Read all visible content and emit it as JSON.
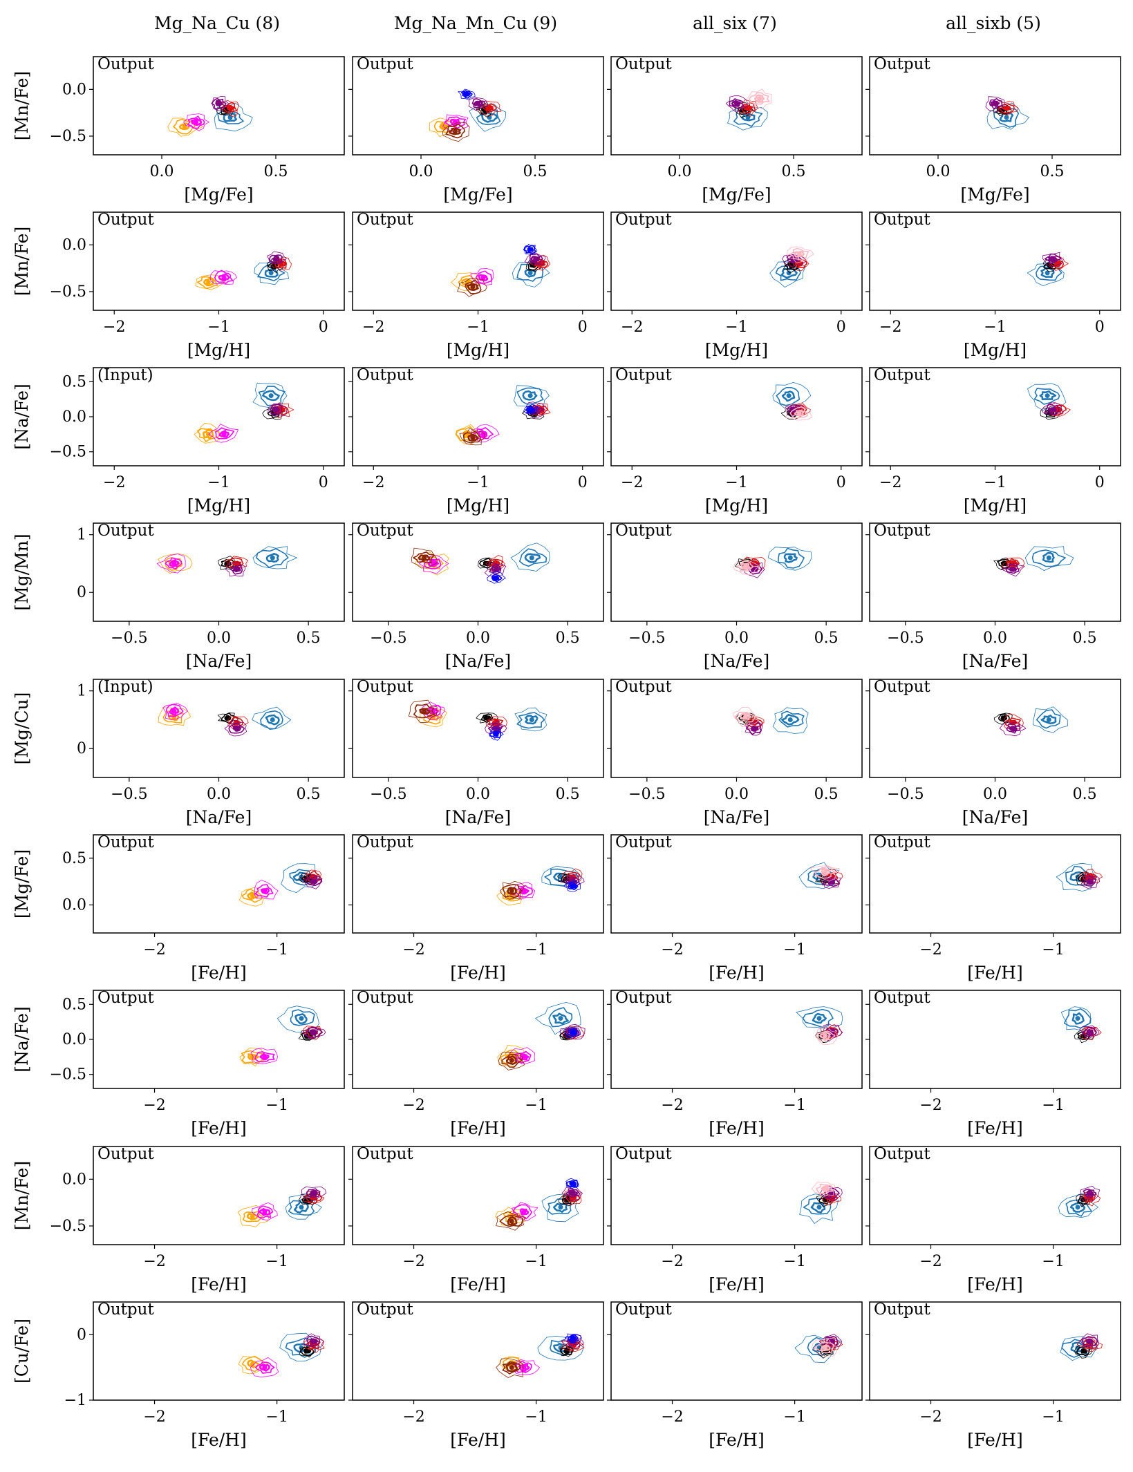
{
  "figure": {
    "column_titles": [
      "Mg_Na_Cu (8)",
      "Mg_Na_Mn_Cu (9)",
      "all_six (7)",
      "all_sixb (5)"
    ]
  },
  "chart_data": {
    "type": "contour",
    "grid": false,
    "rows": [
      {
        "xlabel": "[Mg/Fe]",
        "ylabel": "[Mn/Fe]",
        "xlim": [
          -0.3,
          0.8
        ],
        "ylim": [
          -0.7,
          0.35
        ],
        "xticks": [
          0.0,
          0.5
        ],
        "xtick_labels": [
          "0.0",
          "0.5"
        ],
        "yticks": [
          0.0,
          -0.5
        ],
        "ytick_labels": [
          "0.0",
          "−0.5"
        ],
        "tags": [
          "Output",
          "Output",
          "Output",
          "Output"
        ]
      },
      {
        "xlabel": "[Mg/H]",
        "ylabel": "[Mn/Fe]",
        "xlim": [
          -2.2,
          0.2
        ],
        "ylim": [
          -0.7,
          0.35
        ],
        "xticks": [
          -2,
          -1,
          0
        ],
        "xtick_labels": [
          "−2",
          "−1",
          "0"
        ],
        "yticks": [
          0.0,
          -0.5
        ],
        "ytick_labels": [
          "0.0",
          "−0.5"
        ],
        "tags": [
          "Output",
          "Output",
          "Output",
          "Output"
        ]
      },
      {
        "xlabel": "[Mg/H]",
        "ylabel": "[Na/Fe]",
        "xlim": [
          -2.2,
          0.2
        ],
        "ylim": [
          -0.7,
          0.7
        ],
        "xticks": [
          -2,
          -1,
          0
        ],
        "xtick_labels": [
          "−2",
          "−1",
          "0"
        ],
        "yticks": [
          0.5,
          0.0,
          -0.5
        ],
        "ytick_labels": [
          "0.5",
          "0.0",
          "−0.5"
        ],
        "tags": [
          "(Input)",
          "Output",
          "Output",
          "Output"
        ]
      },
      {
        "xlabel": "[Na/Fe]",
        "ylabel": "[Mg/Mn]",
        "xlim": [
          -0.7,
          0.7
        ],
        "ylim": [
          -0.5,
          1.2
        ],
        "xticks": [
          -0.5,
          0.0,
          0.5
        ],
        "xtick_labels": [
          "−0.5",
          "0.0",
          "0.5"
        ],
        "yticks": [
          1,
          0
        ],
        "ytick_labels": [
          "1",
          "0"
        ],
        "tags": [
          "Output",
          "Output",
          "Output",
          "Output"
        ]
      },
      {
        "xlabel": "[Na/Fe]",
        "ylabel": "[Mg/Cu]",
        "xlim": [
          -0.7,
          0.7
        ],
        "ylim": [
          -0.5,
          1.2
        ],
        "xticks": [
          -0.5,
          0.0,
          0.5
        ],
        "xtick_labels": [
          "−0.5",
          "0.0",
          "0.5"
        ],
        "yticks": [
          1,
          0
        ],
        "ytick_labels": [
          "1",
          "0"
        ],
        "tags": [
          "(Input)",
          "Output",
          "Output",
          "Output"
        ]
      },
      {
        "xlabel": "[Fe/H]",
        "ylabel": "[Mg/Fe]",
        "xlim": [
          -2.5,
          -0.45
        ],
        "ylim": [
          -0.3,
          0.75
        ],
        "xticks": [
          -2,
          -1
        ],
        "xtick_labels": [
          "−2",
          "−1"
        ],
        "yticks": [
          0.5,
          0.0
        ],
        "ytick_labels": [
          "0.5",
          "0.0"
        ],
        "tags": [
          "Output",
          "Output",
          "Output",
          "Output"
        ]
      },
      {
        "xlabel": "[Fe/H]",
        "ylabel": "[Na/Fe]",
        "xlim": [
          -2.5,
          -0.45
        ],
        "ylim": [
          -0.7,
          0.7
        ],
        "xticks": [
          -2,
          -1
        ],
        "xtick_labels": [
          "−2",
          "−1"
        ],
        "yticks": [
          0.5,
          0.0,
          -0.5
        ],
        "ytick_labels": [
          "0.5",
          "0.0",
          "−0.5"
        ],
        "tags": [
          "Output",
          "Output",
          "Output",
          "Output"
        ]
      },
      {
        "xlabel": "[Fe/H]",
        "ylabel": "[Mn/Fe]",
        "xlim": [
          -2.5,
          -0.45
        ],
        "ylim": [
          -0.7,
          0.35
        ],
        "xticks": [
          -2,
          -1
        ],
        "xtick_labels": [
          "−2",
          "−1"
        ],
        "yticks": [
          0.0,
          -0.5
        ],
        "ytick_labels": [
          "0.0",
          "−0.5"
        ],
        "tags": [
          "Output",
          "Output",
          "Output",
          "Output"
        ]
      },
      {
        "xlabel": "[Fe/H]",
        "ylabel": "[Cu/Fe]",
        "xlim": [
          -2.5,
          -0.45
        ],
        "ylim": [
          -1.0,
          0.5
        ],
        "xticks": [
          -2,
          -1
        ],
        "xtick_labels": [
          "−2",
          "−1"
        ],
        "yticks": [
          0,
          -1
        ],
        "ytick_labels": [
          "0",
          "−1"
        ],
        "tags": [
          "Output",
          "Output",
          "Output",
          "Output"
        ]
      }
    ],
    "clusters": [
      {
        "color": "#1f77b4",
        "panel_columns": [
          0,
          1,
          2,
          3
        ],
        "mgfe": 0.3,
        "mnfe": -0.3,
        "nafe": 0.3,
        "feh": -0.8,
        "cufe": -0.2,
        "spread": 1.5
      },
      {
        "color": "#000000",
        "panel_columns": [
          0,
          1,
          2,
          3
        ],
        "mgfe": 0.28,
        "mnfe": -0.22,
        "nafe": 0.05,
        "feh": -0.75,
        "cufe": -0.25,
        "spread": 0.7
      },
      {
        "color": "#ffa500",
        "panel_columns": [
          0,
          1
        ],
        "mgfe": 0.1,
        "mnfe": -0.4,
        "nafe": -0.25,
        "feh": -1.2,
        "cufe": -0.45,
        "spread": 1.1
      },
      {
        "color": "#ff00ff",
        "panel_columns": [
          0,
          1
        ],
        "mgfe": 0.15,
        "mnfe": -0.35,
        "nafe": -0.25,
        "feh": -1.1,
        "cufe": -0.5,
        "spread": 1.0
      },
      {
        "color": "#dd1111",
        "panel_columns": [
          0,
          1,
          2,
          3
        ],
        "mgfe": 0.3,
        "mnfe": -0.2,
        "nafe": 0.1,
        "feh": -0.7,
        "cufe": -0.15,
        "spread": 0.8
      },
      {
        "color": "#800080",
        "panel_columns": [
          0,
          1,
          2,
          3
        ],
        "mgfe": 0.25,
        "mnfe": -0.15,
        "nafe": 0.1,
        "feh": -0.7,
        "cufe": -0.1,
        "spread": 0.8
      },
      {
        "color": "#8b2500",
        "panel_columns": [
          1
        ],
        "mgfe": 0.15,
        "mnfe": -0.45,
        "nafe": -0.3,
        "feh": -1.2,
        "cufe": -0.5,
        "spread": 1.1
      },
      {
        "color": "#0000ff",
        "panel_columns": [
          1
        ],
        "mgfe": 0.2,
        "mnfe": -0.05,
        "nafe": 0.1,
        "feh": -0.7,
        "cufe": -0.05,
        "spread": 0.6
      },
      {
        "color": "#ffb6c1",
        "panel_columns": [
          2
        ],
        "mgfe": 0.35,
        "mnfe": -0.1,
        "nafe": 0.05,
        "feh": -0.75,
        "cufe": -0.2,
        "spread": 1.0
      }
    ]
  }
}
